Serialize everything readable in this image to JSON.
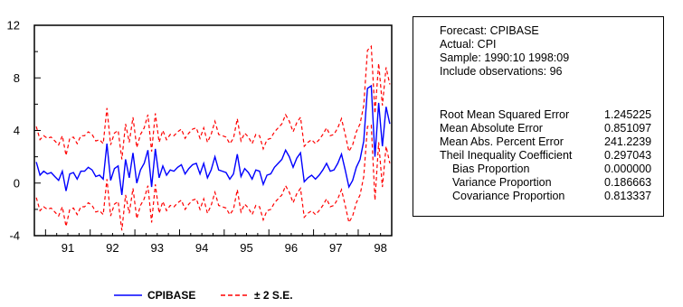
{
  "chart_data": {
    "type": "line",
    "x_ticks": [
      "91",
      "92",
      "93",
      "94",
      "95",
      "96",
      "97",
      "98"
    ],
    "y_ticks": [
      "-4",
      "0",
      "4",
      "8",
      "12"
    ],
    "ylim": [
      -4,
      12
    ],
    "xlim": [
      1990.75,
      1998.75
    ],
    "grid": false,
    "legend_position": "bottom",
    "series": [
      {
        "name": "CPIBASE",
        "color": "#0000ff",
        "style": "solid",
        "x": [
          1990.792,
          1990.875,
          1990.958,
          1991.042,
          1991.125,
          1991.208,
          1991.292,
          1991.375,
          1991.458,
          1991.542,
          1991.625,
          1991.708,
          1991.792,
          1991.875,
          1991.958,
          1992.042,
          1992.125,
          1992.208,
          1992.292,
          1992.375,
          1992.458,
          1992.542,
          1992.625,
          1992.708,
          1992.792,
          1992.875,
          1992.958,
          1993.042,
          1993.125,
          1993.208,
          1993.292,
          1993.375,
          1993.458,
          1993.542,
          1993.625,
          1993.708,
          1993.792,
          1993.875,
          1993.958,
          1994.042,
          1994.125,
          1994.208,
          1994.292,
          1994.375,
          1994.458,
          1994.542,
          1994.625,
          1994.708,
          1994.792,
          1994.875,
          1994.958,
          1995.042,
          1995.125,
          1995.208,
          1995.292,
          1995.375,
          1995.458,
          1995.542,
          1995.625,
          1995.708,
          1995.792,
          1995.875,
          1995.958,
          1996.042,
          1996.125,
          1996.208,
          1996.292,
          1996.375,
          1996.458,
          1996.542,
          1996.625,
          1996.708,
          1996.792,
          1996.875,
          1996.958,
          1997.042,
          1997.125,
          1997.208,
          1997.292,
          1997.375,
          1997.458,
          1997.542,
          1997.625,
          1997.708,
          1997.792,
          1997.875,
          1997.958,
          1998.042,
          1998.125,
          1998.208,
          1998.292,
          1998.375,
          1998.458,
          1998.542,
          1998.625,
          1998.708
        ],
        "values": [
          1.6,
          0.6,
          0.9,
          0.7,
          0.8,
          0.5,
          0.2,
          0.9,
          -0.6,
          0.7,
          0.8,
          0.3,
          0.9,
          0.9,
          1.2,
          1.0,
          0.5,
          0.6,
          0.3,
          3.0,
          0.2,
          1.1,
          1.3,
          -0.9,
          1.8,
          0.4,
          2.3,
          0.0,
          1.0,
          1.5,
          2.5,
          -0.3,
          2.6,
          0.4,
          1.3,
          0.6,
          1.0,
          0.9,
          1.2,
          1.4,
          0.7,
          1.1,
          1.4,
          1.5,
          0.7,
          1.5,
          0.4,
          1.0,
          2.0,
          1.0,
          0.9,
          0.8,
          0.3,
          0.7,
          2.2,
          0.5,
          1.1,
          0.8,
          0.3,
          1.0,
          0.9,
          -0.1,
          0.6,
          0.7,
          1.2,
          1.5,
          1.8,
          2.5,
          2.0,
          1.2,
          1.9,
          2.3,
          0.1,
          0.4,
          0.6,
          0.3,
          0.6,
          1.0,
          1.5,
          0.9,
          1.0,
          1.5,
          2.2,
          1.0,
          -0.3,
          0.2,
          1.2,
          1.8,
          3.2,
          7.2,
          7.4,
          2.0,
          6.1,
          2.8,
          5.8,
          4.5
        ]
      },
      {
        "name": "± 2 S.E.",
        "color": "#ff0000",
        "style": "dashed",
        "band_halfwidth": [
          2.7,
          2.7,
          2.7,
          2.7,
          2.7,
          2.7,
          2.7,
          2.7,
          2.7,
          2.7,
          2.7,
          2.7,
          2.7,
          2.7,
          2.7,
          2.7,
          2.7,
          2.7,
          2.7,
          2.7,
          2.7,
          2.7,
          2.7,
          2.7,
          2.7,
          2.7,
          2.7,
          2.7,
          2.7,
          2.7,
          2.7,
          2.7,
          2.7,
          2.7,
          2.7,
          2.7,
          2.7,
          2.7,
          2.7,
          2.7,
          2.7,
          2.7,
          2.7,
          2.7,
          2.7,
          2.7,
          2.7,
          2.7,
          2.7,
          2.7,
          2.7,
          2.7,
          2.7,
          2.7,
          2.7,
          2.7,
          2.7,
          2.7,
          2.7,
          2.7,
          2.7,
          2.7,
          2.7,
          2.7,
          2.7,
          2.7,
          2.7,
          2.7,
          2.7,
          2.7,
          2.7,
          2.7,
          2.7,
          2.7,
          2.7,
          2.7,
          2.7,
          2.7,
          2.7,
          2.7,
          2.7,
          2.7,
          2.7,
          2.7,
          2.7,
          2.7,
          2.7,
          2.7,
          2.7,
          2.9,
          3.0,
          3.3,
          3.0,
          3.1,
          3.0,
          3.0
        ]
      }
    ]
  },
  "legend": {
    "items": [
      {
        "label": "CPIBASE",
        "color": "#0000ff",
        "style": "solid"
      },
      {
        "label": "± 2 S.E.",
        "color": "#ff0000",
        "style": "dashed"
      }
    ]
  },
  "stats": {
    "header": [
      "Forecast: CPIBASE",
      "Actual: CPI",
      "Sample: 1990:10 1998:09",
      "Include observations: 96"
    ],
    "rows": [
      {
        "label": "Root Mean Squared Error",
        "value": "1.245225",
        "indent": false
      },
      {
        "label": "Mean Absolute Error",
        "value": "0.851097",
        "indent": false
      },
      {
        "label": "Mean Abs. Percent Error",
        "value": "241.2239",
        "indent": false
      },
      {
        "label": "Theil Inequality Coefficient",
        "value": "0.297043",
        "indent": false
      },
      {
        "label": "Bias Proportion",
        "value": "0.000000",
        "indent": true
      },
      {
        "label": "Variance Proportion",
        "value": "0.186663",
        "indent": true
      },
      {
        "label": "Covariance Proportion",
        "value": "0.813337",
        "indent": true
      }
    ]
  }
}
